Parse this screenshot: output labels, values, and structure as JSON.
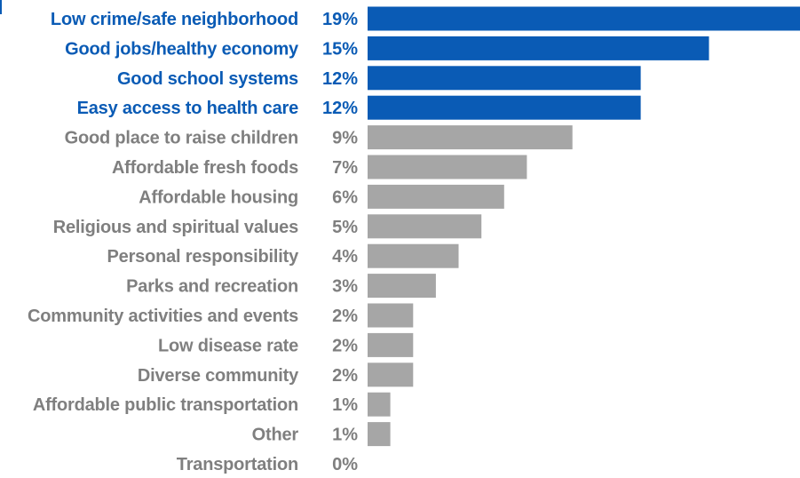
{
  "chart_data": {
    "type": "bar",
    "orientation": "horizontal",
    "categories": [
      "Low crime/safe neighborhood",
      "Good jobs/healthy economy",
      "Good school systems",
      "Easy access to health care",
      "Good place to raise children",
      "Affordable fresh foods",
      "Affordable housing",
      "Religious and spiritual values",
      "Personal responsibility",
      "Parks and recreation",
      "Community activities and events",
      "Low disease rate",
      "Diverse community",
      "Affordable public transportation",
      "Other",
      "Transportation"
    ],
    "values": [
      19,
      15,
      12,
      12,
      9,
      7,
      6,
      5,
      4,
      3,
      2,
      2,
      2,
      1,
      1,
      0
    ],
    "value_labels": [
      "19%",
      "15%",
      "12%",
      "12%",
      "9%",
      "7%",
      "6%",
      "5%",
      "4%",
      "3%",
      "2%",
      "2%",
      "2%",
      "1%",
      "1%",
      "0%"
    ],
    "highlight_count": 4,
    "colors": {
      "highlight_bar": "#0a5bb5",
      "highlight_text": "#0a5bb5",
      "normal_bar": "#a6a6a6",
      "normal_text": "#7f7f7f"
    },
    "title": "",
    "xlabel": "",
    "ylabel": "",
    "grid": false,
    "legend": "none"
  }
}
